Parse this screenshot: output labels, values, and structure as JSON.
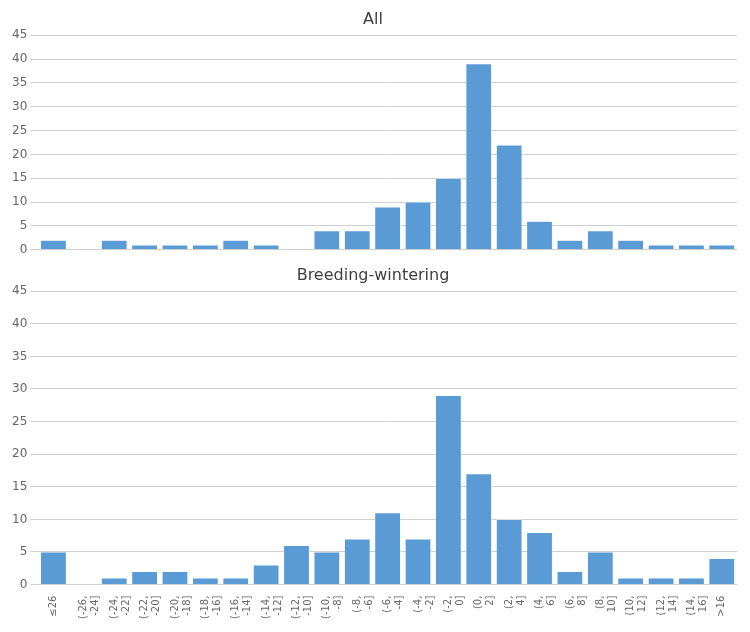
{
  "chart_data": [
    {
      "type": "bar",
      "title": "All",
      "categories": [
        "≤26",
        "(-26,\n-24]",
        "(-24,\n-22]",
        "(-22,\n-20]",
        "(-20,\n-18]",
        "(-18,\n-16]",
        "(-16,\n-14]",
        "(-14,\n-12]",
        "(-12,\n-10]",
        "(-10,\n-8]",
        "(-8,\n-6]",
        "(-6,\n-4]",
        "(-4,\n-2]",
        "(-2,\n0]",
        "(0,\n2]",
        "(2,\n4]",
        "(4,\n6]",
        "(6,\n8]",
        "(8,\n10]",
        "(10,\n12]",
        "(12,\n14]",
        "(14,\n16]",
        ">16"
      ],
      "values": [
        2,
        0,
        2,
        1,
        1,
        1,
        2,
        1,
        0,
        4,
        4,
        9,
        10,
        15,
        39,
        22,
        6,
        2,
        4,
        2,
        1,
        1,
        1
      ],
      "color": "#5b9bd5",
      "ylim": [
        0,
        45
      ],
      "yticks": [
        0,
        5,
        10,
        15,
        20,
        25,
        30,
        35,
        40,
        45
      ],
      "grid": true,
      "tick_labels": "y"
    },
    {
      "type": "bar",
      "title": "Breeding-wintering",
      "categories": [
        "≤26",
        "(-26,\n-24]",
        "(-24,\n-22]",
        "(-22,\n-20]",
        "(-20,\n-18]",
        "(-18,\n-16]",
        "(-16,\n-14]",
        "(-14,\n-12]",
        "(-12,\n-10]",
        "(-10,\n-8]",
        "(-8,\n-6]",
        "(-6,\n-4]",
        "(-4,\n-2]",
        "(-2,\n0]",
        "(0,\n2]",
        "(2,\n4]",
        "(4,\n6]",
        "(6,\n8]",
        "(8,\n10]",
        "(10,\n12]",
        "(12,\n14]",
        "(14,\n16]",
        ">16"
      ],
      "values": [
        5,
        0,
        1,
        2,
        2,
        1,
        1,
        3,
        6,
        5,
        7,
        11,
        7,
        29,
        17,
        10,
        8,
        2,
        5,
        1,
        1,
        1,
        4
      ],
      "color": "#5b9bd5",
      "ylim": [
        0,
        45
      ],
      "yticks": [
        0,
        5,
        10,
        15,
        20,
        25,
        30,
        35,
        40,
        45
      ],
      "grid": true
    }
  ]
}
